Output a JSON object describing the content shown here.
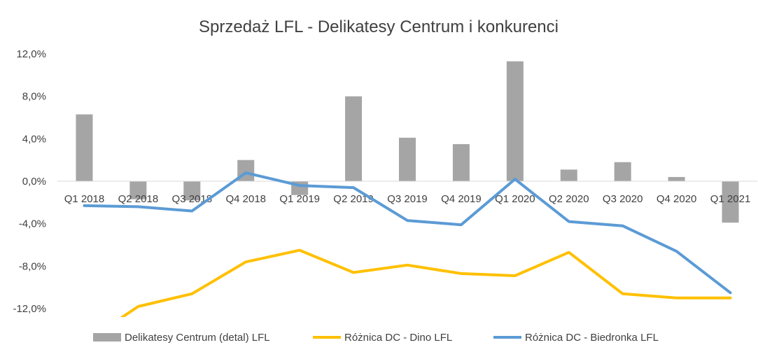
{
  "chart_data": {
    "type": "bar",
    "title": "Sprzedaż LFL - Delikatesy Centrum i konkurenci",
    "categories": [
      "Q1 2018",
      "Q2 2018",
      "Q3 2018",
      "Q4 2018",
      "Q1 2019",
      "Q2 2019",
      "Q3 2019",
      "Q4 2019",
      "Q1 2020",
      "Q2 2020",
      "Q3 2020",
      "Q4 2020",
      "Q1 2021"
    ],
    "y_ticks": [
      "12,0%",
      "8,0%",
      "4,0%",
      "0,0%",
      "-4,0%",
      "-8,0%",
      "-12,0%"
    ],
    "ylim": [
      -12,
      12
    ],
    "grid": false,
    "legend_position": "bottom",
    "series": [
      {
        "name": "Delikatesy Centrum (detal) LFL",
        "kind": "bar",
        "color": "#a5a5a5",
        "values": [
          6.3,
          -1.7,
          -1.8,
          2.0,
          -1.3,
          8.0,
          4.1,
          3.5,
          11.3,
          1.1,
          1.8,
          0.4,
          -3.9
        ]
      },
      {
        "name": "Różnica DC - Dino LFL",
        "kind": "line",
        "color": "#ffc000",
        "values": [
          -15.2,
          -11.8,
          -10.6,
          -7.6,
          -6.5,
          -8.6,
          -7.9,
          -8.7,
          -8.9,
          -6.7,
          -10.6,
          -11.0,
          -11.0
        ]
      },
      {
        "name": "Różnica DC - Biedronka LFL",
        "kind": "line",
        "color": "#5b9bd5",
        "values": [
          -2.3,
          -2.4,
          -2.8,
          0.8,
          -0.4,
          -0.6,
          -3.7,
          -4.1,
          0.2,
          -3.8,
          -4.2,
          -6.6,
          -10.5
        ]
      }
    ]
  }
}
